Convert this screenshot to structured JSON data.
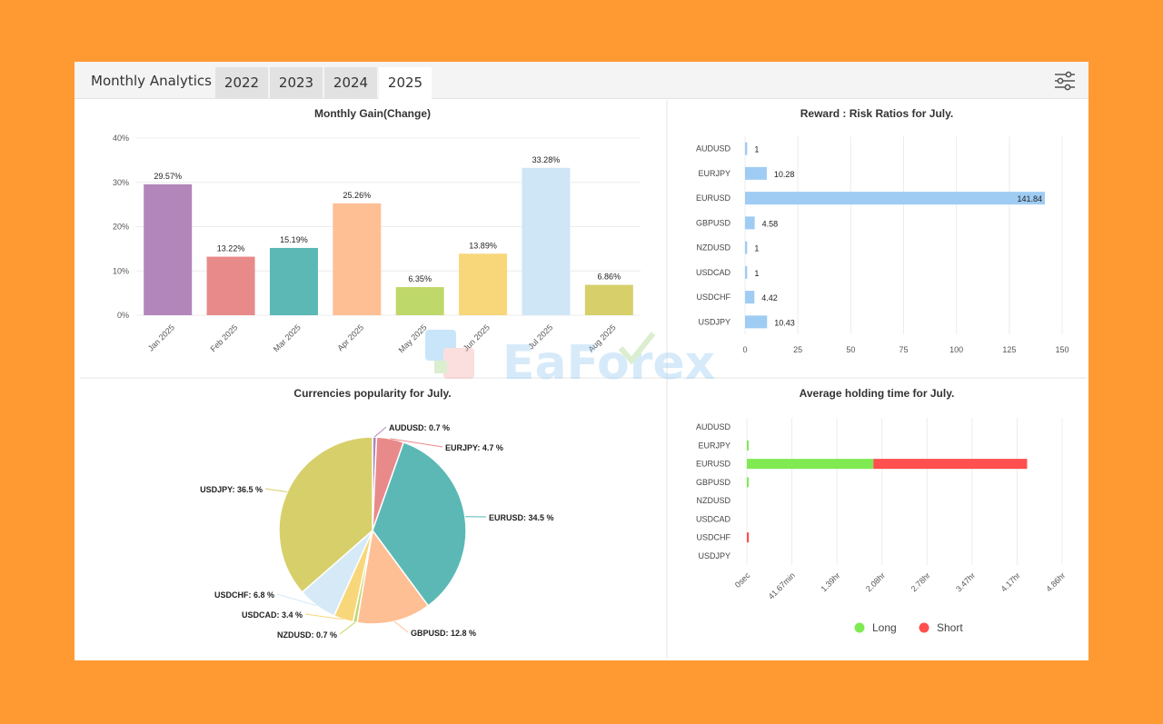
{
  "header": {
    "title": "Monthly Analytics",
    "tabs": [
      {
        "label": "2022",
        "active": false
      },
      {
        "label": "2023",
        "active": false
      },
      {
        "label": "2024",
        "active": false
      },
      {
        "label": "2025",
        "active": true
      }
    ],
    "settings_icon": "sliders-icon"
  },
  "watermark": {
    "text": "EaForex"
  },
  "chart_data": [
    {
      "type": "bar",
      "title": "Monthly Gain(Change)",
      "categories": [
        "Jan 2025",
        "Feb 2025",
        "Mar 2025",
        "Apr 2025",
        "May 2025",
        "Jun 2025",
        "Jul 2025",
        "Aug 2025"
      ],
      "values": [
        29.57,
        13.22,
        15.19,
        25.26,
        6.35,
        13.89,
        33.28,
        6.86
      ],
      "labels": [
        "29.57%",
        "13.22%",
        "15.19%",
        "25.26%",
        "6.35%",
        "13.89%",
        "33.28%",
        "6.86%"
      ],
      "colors": [
        "#B286BA",
        "#E88A8A",
        "#5BB8B5",
        "#FFBF94",
        "#BFD86A",
        "#F8D77A",
        "#CFE6F7",
        "#D7CF6A"
      ],
      "ylim": [
        0,
        40
      ],
      "yticks": [
        "0%",
        "10%",
        "20%",
        "30%",
        "40%"
      ],
      "grid": true
    },
    {
      "type": "bar",
      "orientation": "horizontal",
      "title": "Reward : Risk Ratios for July.",
      "categories": [
        "AUDUSD",
        "EURJPY",
        "EURUSD",
        "GBPUSD",
        "NZDUSD",
        "USDCAD",
        "USDCHF",
        "USDJPY"
      ],
      "values": [
        1,
        10.28,
        141.84,
        4.58,
        1,
        1,
        4.42,
        10.43
      ],
      "labels": [
        "1",
        "10.28",
        "141.84",
        "4.58",
        "1",
        "1",
        "4.42",
        "10.43"
      ],
      "color": "#9FCCF3",
      "xlim": [
        0,
        150
      ],
      "xticks": [
        "0",
        "25",
        "50",
        "75",
        "100",
        "125",
        "150"
      ],
      "grid": true
    },
    {
      "type": "pie",
      "title": "Currencies popularity for July.",
      "slices": [
        {
          "label": "AUDUSD: 0.7 %",
          "value": 0.7,
          "color": "#B286BA"
        },
        {
          "label": "EURJPY: 4.7 %",
          "value": 4.7,
          "color": "#E88A8A"
        },
        {
          "label": "EURUSD: 34.5 %",
          "value": 34.5,
          "color": "#5BB8B5"
        },
        {
          "label": "GBPUSD: 12.8 %",
          "value": 12.8,
          "color": "#FFBF94"
        },
        {
          "label": "NZDUSD: 0.7 %",
          "value": 0.7,
          "color": "#BFD86A"
        },
        {
          "label": "USDCAD: 3.4 %",
          "value": 3.4,
          "color": "#F8D77A"
        },
        {
          "label": "USDCHF: 6.8 %",
          "value": 6.8,
          "color": "#D6E9F7"
        },
        {
          "label": "USDJPY: 36.5 %",
          "value": 36.5,
          "color": "#D7CF6A"
        }
      ]
    },
    {
      "type": "bar",
      "orientation": "horizontal",
      "stacked": true,
      "title": "Average holding time for July.",
      "categories": [
        "AUDUSD",
        "EURJPY",
        "EURUSD",
        "GBPUSD",
        "NZDUSD",
        "USDCAD",
        "USDCHF",
        "USDJPY"
      ],
      "series": [
        {
          "name": "Long",
          "color": "#7FEA52",
          "values_hr": [
            0,
            0.02,
            1.95,
            0.02,
            0,
            0,
            0,
            0
          ]
        },
        {
          "name": "Short",
          "color": "#FF4F4F",
          "values_hr": [
            0,
            0,
            2.37,
            0,
            0,
            0,
            0.03,
            0
          ]
        }
      ],
      "xlim_hr": [
        0,
        4.86
      ],
      "xticks": [
        "0sec",
        "41.67min",
        "1.39hr",
        "2.08hr",
        "2.78hr",
        "3.47hr",
        "4.17hr",
        "4.86hr"
      ],
      "legend": "bottom",
      "grid": true
    }
  ]
}
